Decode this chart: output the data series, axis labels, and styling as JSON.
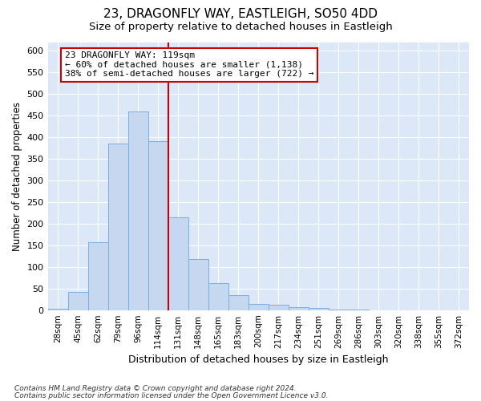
{
  "title1": "23, DRAGONFLY WAY, EASTLEIGH, SO50 4DD",
  "title2": "Size of property relative to detached houses in Eastleigh",
  "xlabel": "Distribution of detached houses by size in Eastleigh",
  "ylabel": "Number of detached properties",
  "categories": [
    "28sqm",
    "45sqm",
    "62sqm",
    "79sqm",
    "96sqm",
    "114sqm",
    "131sqm",
    "148sqm",
    "165sqm",
    "183sqm",
    "200sqm",
    "217sqm",
    "234sqm",
    "251sqm",
    "269sqm",
    "286sqm",
    "303sqm",
    "320sqm",
    "338sqm",
    "355sqm",
    "372sqm"
  ],
  "values": [
    3,
    43,
    158,
    385,
    460,
    390,
    215,
    118,
    62,
    35,
    15,
    13,
    7,
    5,
    2,
    1,
    0,
    0,
    0,
    0,
    0
  ],
  "bar_color": "#c5d8f0",
  "bar_edge_color": "#7aafe0",
  "red_line_x": 5.5,
  "annotation_line1": "23 DRAGONFLY WAY: 119sqm",
  "annotation_line2": "← 60% of detached houses are smaller (1,138)",
  "annotation_line3": "38% of semi-detached houses are larger (722) →",
  "footnote1": "Contains HM Land Registry data © Crown copyright and database right 2024.",
  "footnote2": "Contains public sector information licensed under the Open Government Licence v3.0.",
  "ylim_max": 620,
  "yticks": [
    0,
    50,
    100,
    150,
    200,
    250,
    300,
    350,
    400,
    450,
    500,
    550,
    600
  ],
  "bg_color": "#dce8f8",
  "grid_color": "#ffffff",
  "fig_bg_color": "#ffffff"
}
